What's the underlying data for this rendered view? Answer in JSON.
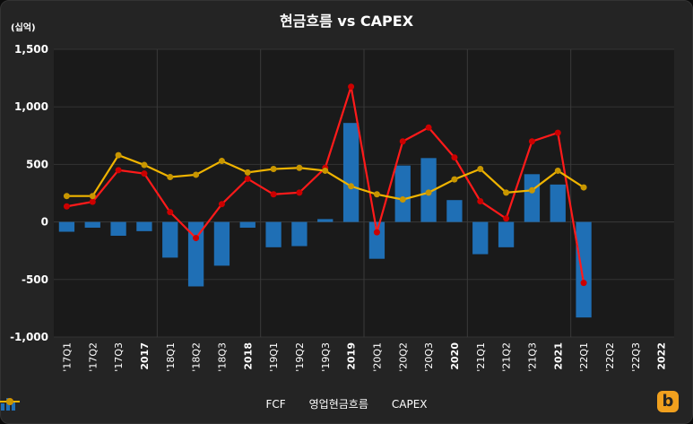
{
  "chart_data": {
    "type": "bar+line",
    "title": "현금흐름 vs CAPEX",
    "unit_label": "(십억)",
    "ylim": [
      -1000,
      1500
    ],
    "yticks": [
      "1,500",
      "1,000",
      "500",
      "0",
      "-500",
      "-1,000"
    ],
    "ytick_values": [
      1500,
      1000,
      500,
      0,
      -500,
      -1000
    ],
    "categories": [
      "'17Q1",
      "'17Q2",
      "'17Q3",
      "2017",
      "'18Q1",
      "'18Q2",
      "'18Q3",
      "2018",
      "'19Q1",
      "'19Q2",
      "'19Q3",
      "2019",
      "'20Q1",
      "'20Q2",
      "'20Q3",
      "2020",
      "'21Q1",
      "'21Q2",
      "'21Q3",
      "2021",
      "'22Q1",
      "'22Q2",
      "'22Q3",
      "2022"
    ],
    "bold_categories": [
      "2017",
      "2018",
      "2019",
      "2020",
      "2021",
      "2022"
    ],
    "series": [
      {
        "name": "FCF",
        "kind": "bar",
        "color": "#1f6fb5",
        "values": [
          -85,
          -50,
          -120,
          -80,
          -310,
          -560,
          -380,
          -50,
          -220,
          -210,
          25,
          860,
          -320,
          490,
          555,
          190,
          -280,
          -220,
          415,
          325,
          -830,
          null,
          null,
          null
        ]
      },
      {
        "name": "영업현금흐름",
        "kind": "line",
        "color": "#ff1a1a",
        "values": [
          135,
          175,
          450,
          420,
          85,
          -140,
          155,
          375,
          240,
          255,
          470,
          1175,
          -90,
          700,
          820,
          560,
          180,
          30,
          700,
          775,
          -530,
          null,
          null,
          null
        ]
      },
      {
        "name": "CAPEX",
        "kind": "line",
        "color": "#f0b400",
        "values": [
          225,
          225,
          580,
          495,
          390,
          410,
          530,
          430,
          460,
          470,
          445,
          310,
          240,
          195,
          255,
          370,
          460,
          255,
          275,
          445,
          300,
          null,
          null,
          null
        ]
      }
    ],
    "grid": true,
    "legend_position": "bottom"
  },
  "logo": {
    "glyph": "b",
    "color": "#f0a01e"
  }
}
